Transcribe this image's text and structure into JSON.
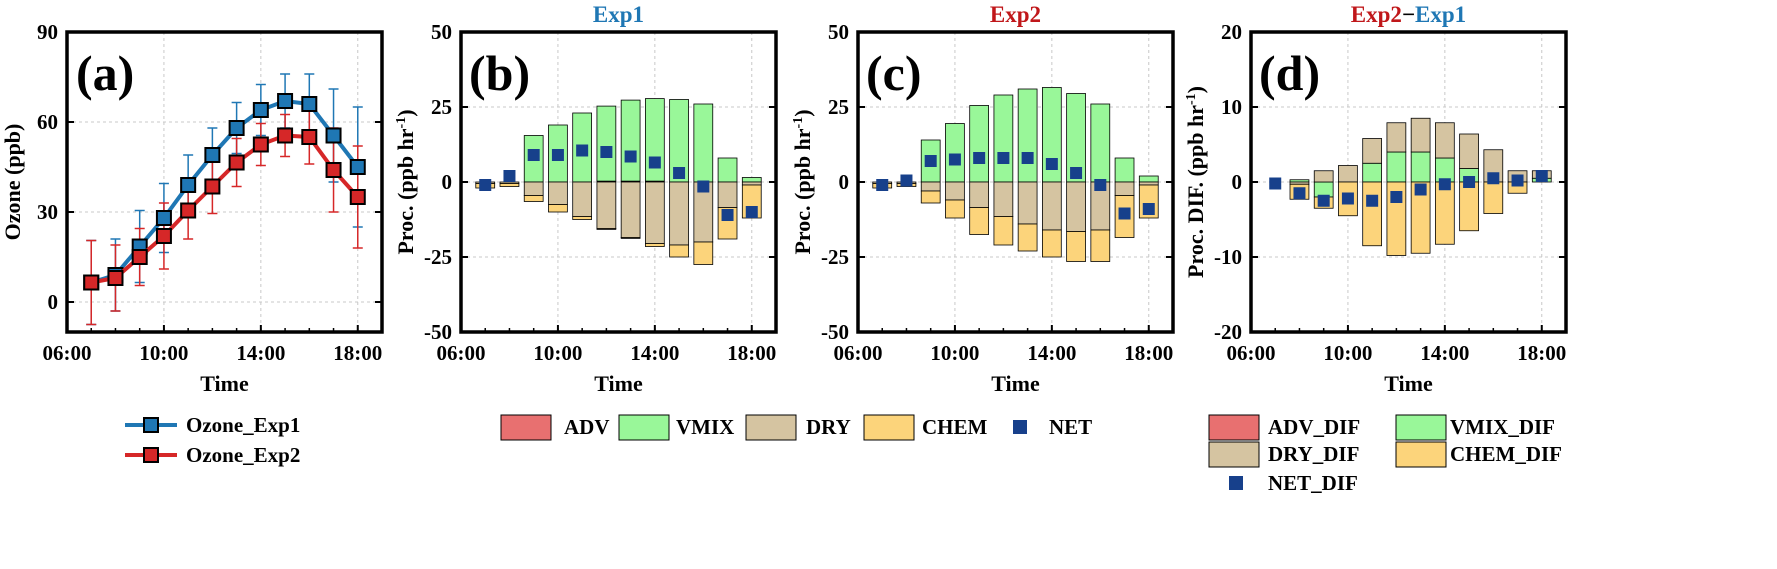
{
  "chart_data": [
    {
      "panel": "a",
      "type": "line",
      "panel_label": "(a)",
      "title": "",
      "xlabel": "Time",
      "ylabel": "Ozone (ppb)",
      "x": [
        7,
        8,
        9,
        10,
        11,
        12,
        13,
        14,
        15,
        16,
        17,
        18
      ],
      "xlim": [
        6,
        19
      ],
      "xticks": [
        6,
        10,
        14,
        18
      ],
      "xtick_labels": [
        "06:00",
        "10:00",
        "14:00",
        "18:00"
      ],
      "ylim": [
        -10,
        90
      ],
      "yticks": [
        0,
        30,
        60,
        90
      ],
      "ytick_labels": [
        "0",
        "30",
        "60",
        "90"
      ],
      "grid": true,
      "series": [
        {
          "name": "Ozone_Exp1",
          "color": "#1f77b4",
          "values": [
            6.5,
            9,
            18.5,
            28,
            39,
            49,
            58,
            64,
            67,
            66,
            55.5,
            45
          ],
          "error": [
            14,
            12,
            12,
            11.5,
            10,
            9,
            8.5,
            8.5,
            9,
            10,
            15.5,
            20
          ]
        },
        {
          "name": "Ozone_Exp2",
          "color": "#d62728",
          "values": [
            6.5,
            8,
            15,
            22,
            30.5,
            38.5,
            46.5,
            52.5,
            55.5,
            55,
            44,
            35
          ],
          "error": [
            14,
            11,
            9.5,
            11,
            9.5,
            9,
            8,
            7,
            7,
            9,
            14,
            17
          ]
        }
      ],
      "legend_position": "bottom"
    },
    {
      "panel": "b",
      "type": "bar",
      "panel_label": "(b)",
      "title": "Exp1",
      "title_color": "#1f77b4",
      "xlabel": "Time",
      "ylabel": "Proc. (ppb hr",
      "ylabel_sup": "-1",
      "ylabel_tail": ")",
      "x": [
        7,
        8,
        9,
        10,
        11,
        12,
        13,
        14,
        15,
        16,
        17,
        18
      ],
      "xlim": [
        6,
        19
      ],
      "xticks": [
        6,
        10,
        14,
        18
      ],
      "xtick_labels": [
        "06:00",
        "10:00",
        "14:00",
        "18:00"
      ],
      "ylim": [
        -50,
        50
      ],
      "yticks": [
        -50,
        -25,
        0,
        25,
        50
      ],
      "ytick_labels": [
        "-50",
        "-25",
        "0",
        "25",
        "50"
      ],
      "grid": true,
      "stacked": true,
      "series": [
        {
          "name": "ADV",
          "color": "#e87070",
          "values": [
            0,
            0,
            0,
            0,
            0,
            0.3,
            0.3,
            0.3,
            0,
            0,
            0,
            0
          ]
        },
        {
          "name": "VMIX",
          "color": "#99f799",
          "values": [
            0,
            0,
            15.5,
            19,
            23,
            25,
            27,
            27.5,
            27.5,
            26,
            8,
            1.5
          ]
        },
        {
          "name": "DRY",
          "color": "#d5c4a1",
          "values": [
            -0.5,
            -0.5,
            -4.5,
            -7.5,
            -11.5,
            -15.5,
            -18.5,
            -20.5,
            -21,
            -20,
            -8.5,
            -1
          ]
        },
        {
          "name": "CHEM",
          "color": "#fcd47b",
          "values": [
            -1.5,
            -1,
            -2,
            -2.5,
            -1,
            -0.3,
            -0.3,
            -1,
            -4,
            -7.5,
            -10.5,
            -11
          ]
        },
        {
          "name": "NET",
          "type": "marker",
          "color": "#17408b",
          "values": [
            -1,
            2,
            9,
            9,
            10.5,
            10,
            8.5,
            6.5,
            3,
            -1.5,
            -11,
            -10
          ]
        }
      ],
      "legend_position": "bottom"
    },
    {
      "panel": "c",
      "type": "bar",
      "panel_label": "(c)",
      "title": "Exp2",
      "title_color": "#c0171a",
      "xlabel": "Time",
      "ylabel": "Proc. (ppb hr",
      "ylabel_sup": "-1",
      "ylabel_tail": ")",
      "x": [
        7,
        8,
        9,
        10,
        11,
        12,
        13,
        14,
        15,
        16,
        17,
        18
      ],
      "xlim": [
        6,
        19
      ],
      "xticks": [
        6,
        10,
        14,
        18
      ],
      "xtick_labels": [
        "06:00",
        "10:00",
        "14:00",
        "18:00"
      ],
      "ylim": [
        -50,
        50
      ],
      "yticks": [
        -50,
        -25,
        0,
        25,
        50
      ],
      "ytick_labels": [
        "-50",
        "-25",
        "0",
        "25",
        "50"
      ],
      "grid": true,
      "stacked": true,
      "series": [
        {
          "name": "ADV",
          "color": "#e87070",
          "values": [
            0,
            0,
            0,
            0,
            0,
            0,
            0,
            0,
            0,
            0,
            0,
            0
          ]
        },
        {
          "name": "VMIX",
          "color": "#99f799",
          "values": [
            0,
            0,
            14,
            19.5,
            25.5,
            29,
            31,
            31.5,
            29.5,
            26,
            8,
            2
          ]
        },
        {
          "name": "DRY",
          "color": "#d5c4a1",
          "values": [
            -0.5,
            -0.5,
            -3,
            -6,
            -8.5,
            -11.5,
            -14,
            -16,
            -16.5,
            -16,
            -4.5,
            -1
          ]
        },
        {
          "name": "CHEM",
          "color": "#fcd47b",
          "values": [
            -1.5,
            -1,
            -4,
            -6,
            -9,
            -9.5,
            -9,
            -9,
            -10,
            -10.5,
            -14,
            -11
          ]
        },
        {
          "name": "NET",
          "type": "marker",
          "color": "#17408b",
          "values": [
            -1,
            0.5,
            7,
            7.5,
            8,
            8,
            8,
            6,
            3,
            -1,
            -10.5,
            -9
          ]
        }
      ],
      "legend_position": "bottom"
    },
    {
      "panel": "d",
      "type": "bar",
      "panel_label": "(d)",
      "title_parts": [
        {
          "text": "Exp2",
          "color": "#c0171a"
        },
        {
          "text": "−",
          "color": "#000000"
        },
        {
          "text": "Exp1",
          "color": "#1f77b4"
        }
      ],
      "xlabel": "Time",
      "ylabel": "Proc. DIF. (ppb hr",
      "ylabel_sup": "-1",
      "ylabel_tail": ")",
      "x": [
        7,
        8,
        9,
        10,
        11,
        12,
        13,
        14,
        15,
        16,
        17,
        18
      ],
      "xlim": [
        6,
        19
      ],
      "xticks": [
        6,
        10,
        14,
        18
      ],
      "xtick_labels": [
        "06:00",
        "10:00",
        "14:00",
        "18:00"
      ],
      "ylim": [
        -20,
        20
      ],
      "yticks": [
        -20,
        -10,
        0,
        10,
        20
      ],
      "ytick_labels": [
        "-20",
        "-10",
        "0",
        "10",
        "20"
      ],
      "grid": true,
      "stacked": true,
      "series": [
        {
          "name": "ADV_DIF",
          "color": "#e87070",
          "values": [
            0,
            0,
            0,
            0,
            0,
            0,
            0,
            0,
            0,
            0,
            0,
            0
          ]
        },
        {
          "name": "VMIX_DIF",
          "color": "#99f799",
          "values": [
            0,
            0.3,
            -2,
            0,
            2.5,
            4,
            4,
            3.2,
            1.8,
            0,
            0,
            0.5
          ]
        },
        {
          "name": "DRY_DIF",
          "color": "#d5c4a1",
          "values": [
            0,
            -0.3,
            1.5,
            2.2,
            3.3,
            3.9,
            4.5,
            4.7,
            4.6,
            4.3,
            1.5,
            1
          ]
        },
        {
          "name": "CHEM_DIF",
          "color": "#fcd47b",
          "values": [
            0,
            -2,
            -1.5,
            -4.5,
            -8.5,
            -9.8,
            -9.5,
            -8.3,
            -6.5,
            -4.2,
            -1.5,
            0
          ]
        },
        {
          "name": "NET_DIF",
          "type": "marker",
          "color": "#17408b",
          "values": [
            -0.2,
            -1.5,
            -2.5,
            -2.2,
            -2.5,
            -2,
            -1,
            -0.3,
            0,
            0.5,
            0.2,
            0.8
          ]
        }
      ],
      "legend_position": "bottom"
    }
  ]
}
